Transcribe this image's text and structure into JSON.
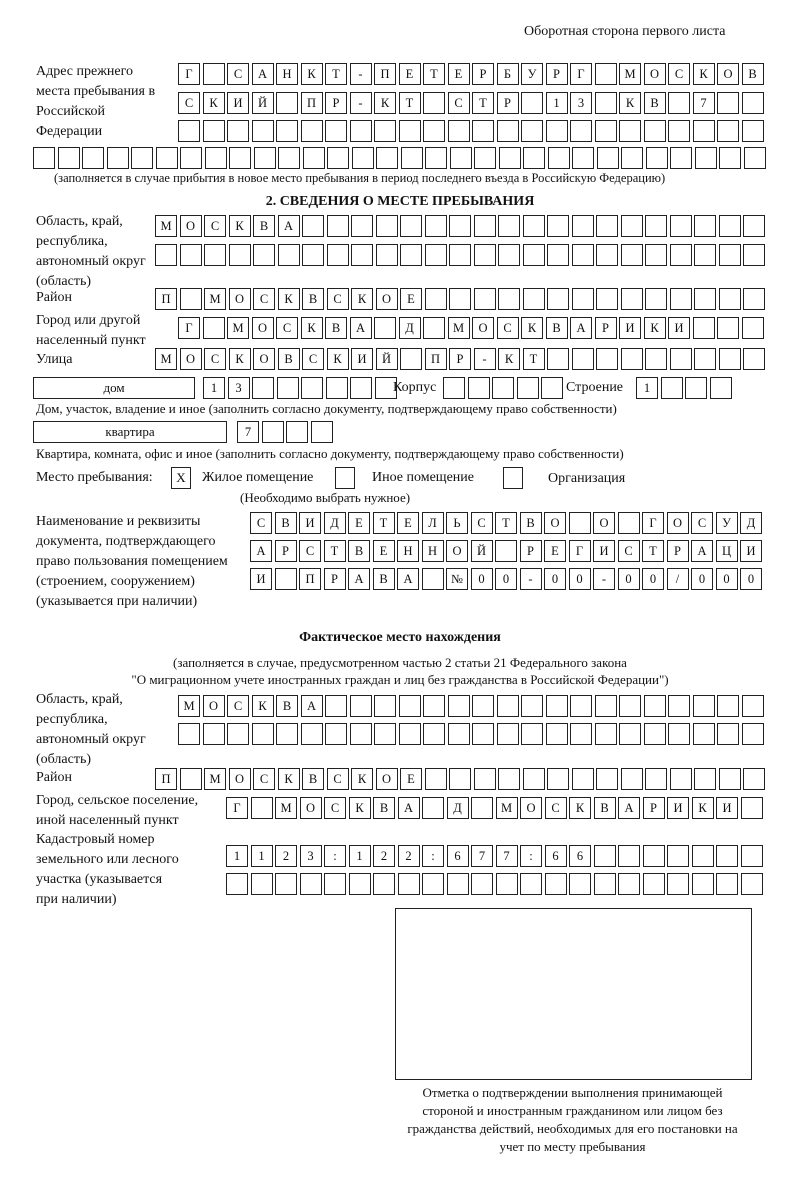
{
  "page_header": "Оборотная сторона первого листа",
  "prev_address": {
    "label": "Адрес прежнего места пребывания в Российской Федерации",
    "rows": [
      "Г САНКТ-ПЕТЕРБУРГ МОСКОВ",
      "СКИЙ ПР-КТ СТР 13 КВ 7",
      "",
      ""
    ],
    "note": "(заполняется в случае прибытия в новое место пребывания в период последнего въезда в Российскую Федерацию)"
  },
  "section2": {
    "heading": "2. СВЕДЕНИЯ О МЕСТЕ ПРЕБЫВАНИЯ",
    "region_label": "Область, край, республика, автономный округ (область)",
    "region_rows": [
      "МОСКВА",
      ""
    ],
    "district_label": "Район",
    "district": "П МОСКВСКОЕ",
    "city_label": "Город или другой населенный пункт",
    "city": "Г МОСКВА Д МОСКВАРИКИ",
    "street_label": "Улица",
    "street": "МОСКОВСКИЙ ПР-КТ",
    "house_type": "дом",
    "house_number": "13",
    "korpus_label": "Корпус",
    "korpus": "",
    "building_label": "Строение",
    "building": "1",
    "house_note": "Дом, участок, владение и иное (заполнить согласно документу, подтверждающему право собственности)",
    "apt_type": "квартира",
    "apt_number": "7",
    "apt_note": "Квартира, комната, офис и иное (заполнить согласно документу, подтверждающему право собственности)",
    "stay_place_label": "Место пребывания:",
    "stay_options": [
      {
        "label": "Жилое помещение",
        "mark": "Х",
        "checked": true
      },
      {
        "label": "Иное помещение",
        "mark": "",
        "checked": false
      },
      {
        "label": "Организация",
        "mark": "",
        "checked": false
      }
    ],
    "stay_note": "(Необходимо выбрать нужное)",
    "doc_label": "Наименование и реквизиты документа, подтверждающего право пользования помещением (строением, сооружением) (указывается при наличии)",
    "doc_rows": [
      "СВИДЕТЕЛЬСТВО О ГОСУД",
      "АРСТВЕННОЙ РЕГИСТРАЦИ",
      "И ПРАВА №00-00-00/000"
    ]
  },
  "actual": {
    "heading": "Фактическое место нахождения",
    "note_line1": "(заполняется в случае, предусмотренном частью 2 статьи 21 Федерального закона",
    "note_line2": "\"О миграционном учете иностранных граждан и лиц без гражданства в Российской Федерации\")",
    "region_label": "Область, край, республика, автономный округ (область)",
    "region_rows": [
      "МОСКВА",
      ""
    ],
    "district_label": "Район",
    "district": "П МОСКВСКОЕ",
    "city_label": "Город, сельское поселение, иной населенный пункт",
    "city": "Г МОСКВА Д МОСКВАРИКИ",
    "cadastral_label": "Кадастровый номер земельного или лесного участка (указывается при наличии)",
    "cadastral_rows": [
      "1123:122:677:66",
      ""
    ]
  },
  "stamp": {
    "caption": "Отметка о подтверждении выполнения принимающей стороной и иностранным гражданином или лицом без гражданства действий, необходимых для его постановки на учет по месту пребывания"
  }
}
